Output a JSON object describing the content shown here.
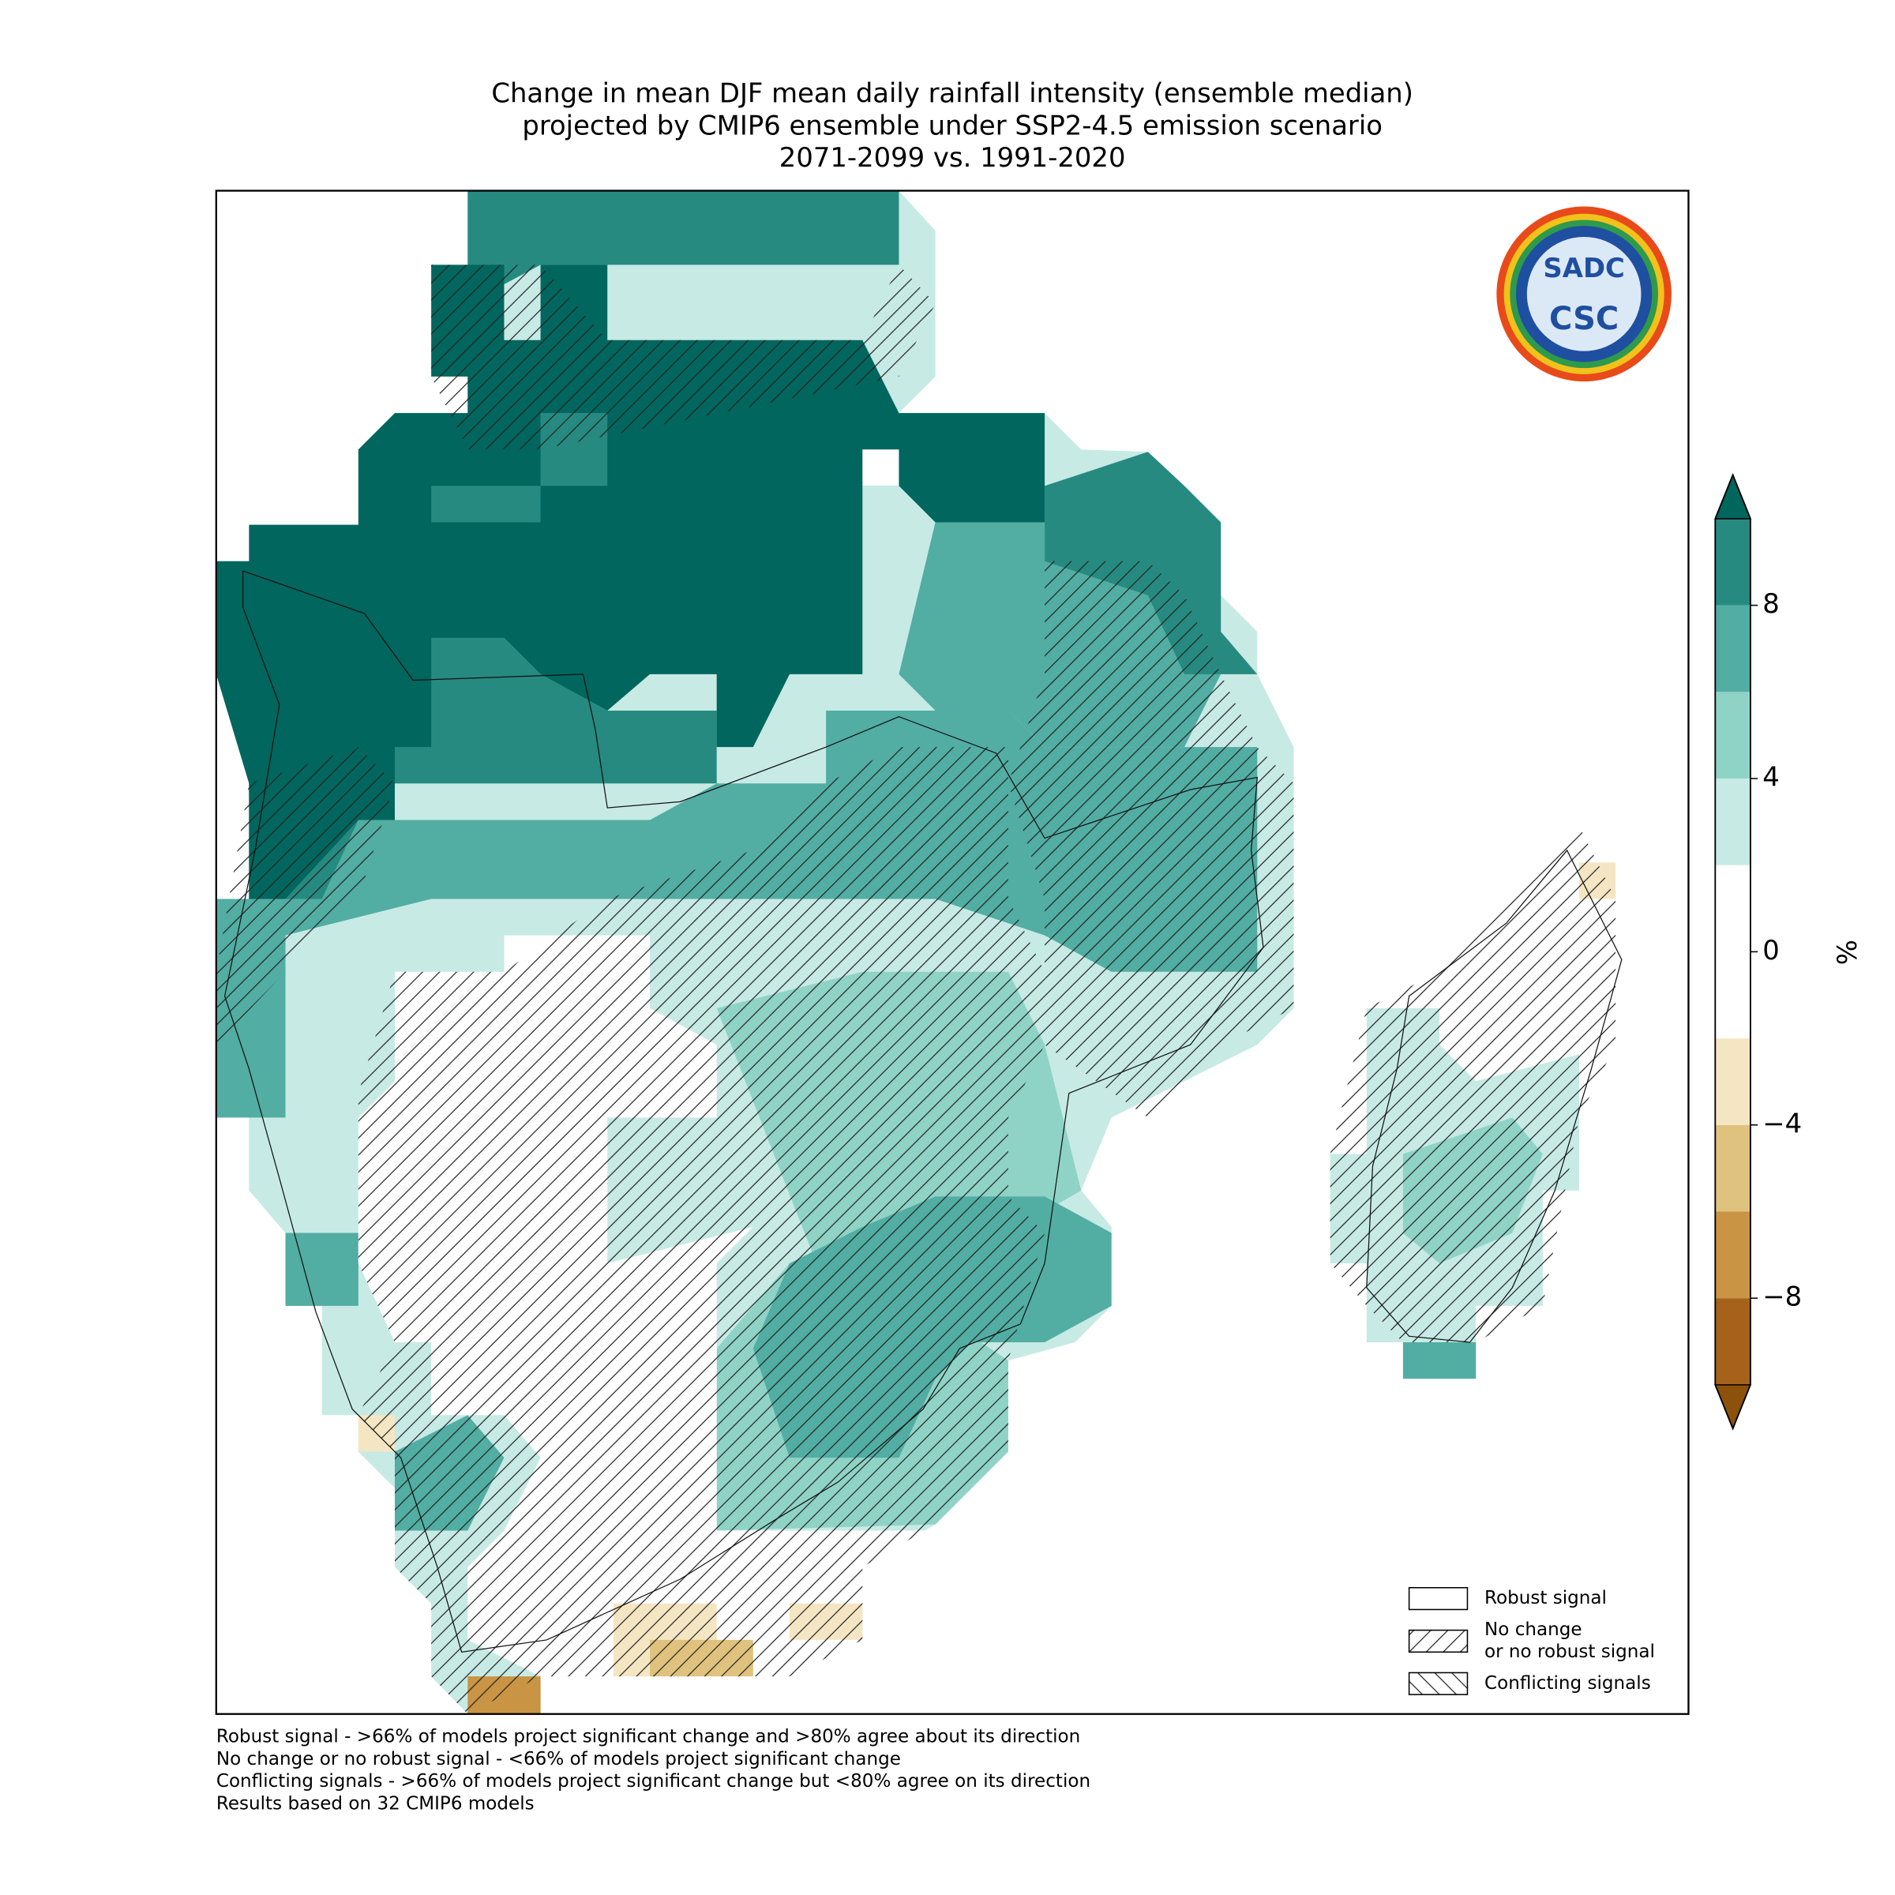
{
  "title": [
    "Change in mean DJF mean daily rainfall intensity (ensemble median)",
    "projected by CMIP6 ensemble under SSP2-4.5 emission scenario",
    "2071-2099 vs. 1991-2020"
  ],
  "colorbar": {
    "label": "%",
    "lim": [
      -10,
      10
    ],
    "bounds": [
      -10,
      -8,
      -6,
      -4,
      -2,
      2,
      4,
      6,
      8,
      10
    ],
    "colors": [
      "#a6611a",
      "#c99443",
      "#dfc27d",
      "#f5e6c3",
      "#ffffff",
      "#c7eae5",
      "#8fd3c6",
      "#52ada3",
      "#268a80"
    ],
    "extend_colors": [
      "#8c510a",
      "#01665e"
    ],
    "ticks": [
      {
        "value": 8,
        "label": "8"
      },
      {
        "value": 4,
        "label": "4"
      },
      {
        "value": 0,
        "label": "0"
      },
      {
        "value": -4,
        "label": "−4"
      },
      {
        "value": -8,
        "label": "−8"
      }
    ]
  },
  "legend": [
    {
      "lines": [
        "Robust signal"
      ],
      "hatch": "none"
    },
    {
      "lines": [
        "No change",
        "or no robust signal"
      ],
      "hatch": "forward"
    },
    {
      "lines": [
        "Conflicting signals"
      ],
      "hatch": "back"
    }
  ],
  "notes": [
    "Robust signal - >66% of models project significant change and >80% agree about its direction",
    "No change or no robust signal - <66% of models project significant change",
    "Conflicting signals - >66% of models project significant change but <80% agree on its direction",
    "Results based on 32 CMIP6 models"
  ],
  "logo": {
    "top": "SADC",
    "bottom": "CSC"
  }
}
